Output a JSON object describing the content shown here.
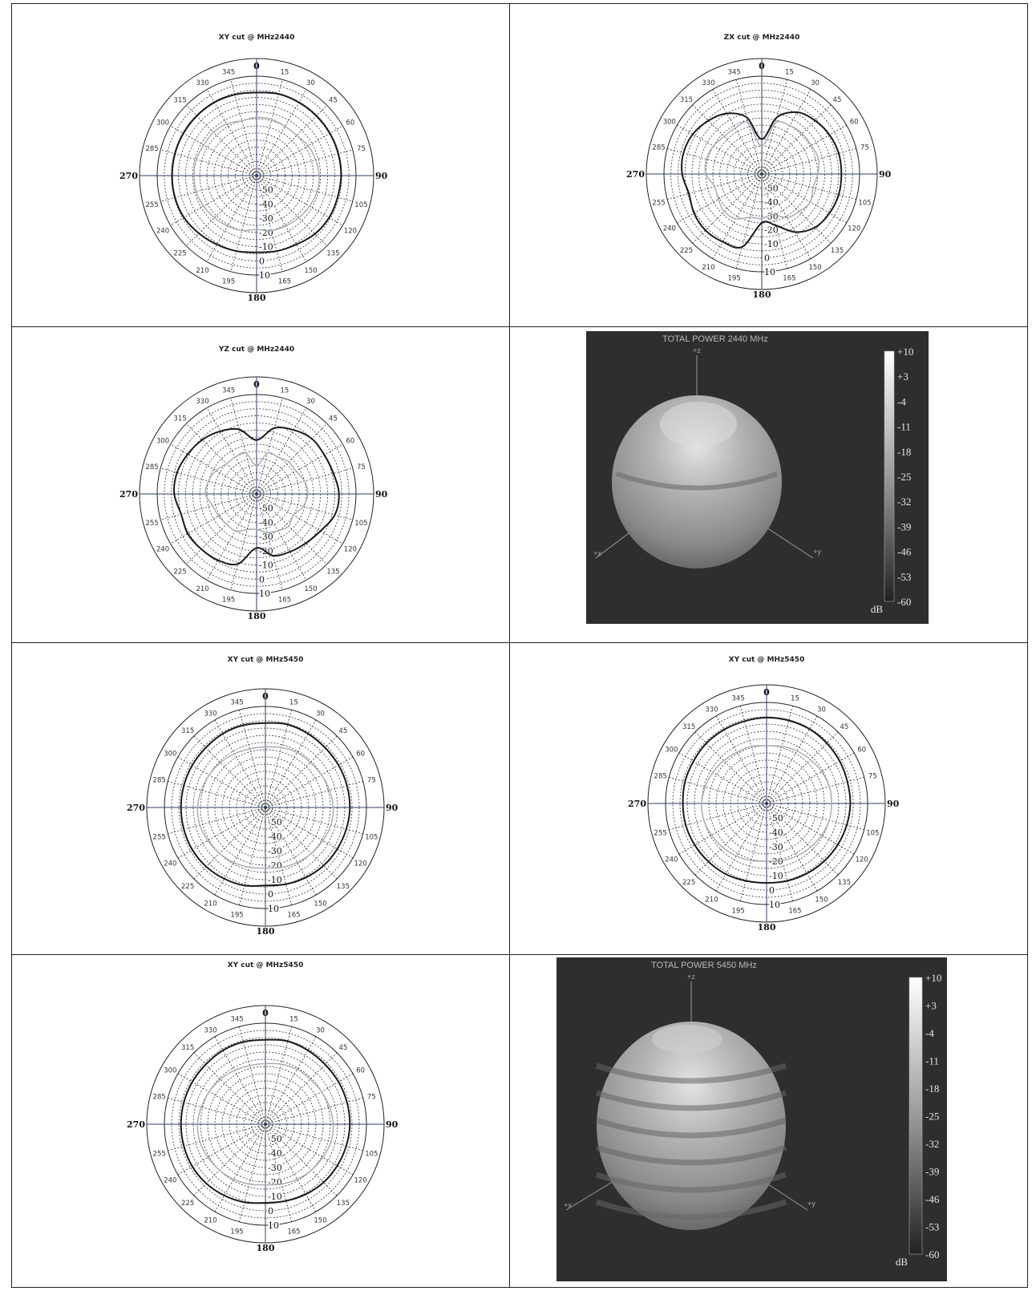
{
  "chart_data": [
    {
      "type": "polar",
      "title": "XY cut @ MHz2440",
      "angle_labels": [
        "0",
        "15",
        "30",
        "45",
        "60",
        "75",
        "90",
        "105",
        "120",
        "135",
        "150",
        "165",
        "180",
        "195",
        "210",
        "225",
        "240",
        "255",
        "270",
        "285",
        "300",
        "315",
        "330",
        "345"
      ],
      "radial_labels": [
        "-50",
        "-40",
        "-30",
        "-20",
        "-10",
        "0",
        "10"
      ],
      "rlim": [
        -60,
        10
      ],
      "series": [
        {
          "values": [
            -1.5,
            -0.5,
            -0.5,
            -0.5,
            -0.5,
            -0.5,
            -0.5,
            -1,
            -1,
            -2,
            -4,
            -5,
            -6,
            -5,
            -4,
            -2.5,
            -1,
            -0.5,
            -0.5,
            -0.5,
            -0.5,
            -0.5,
            -0.5,
            -1
          ]
        },
        {
          "values": [
            -19,
            -19,
            -20,
            -20,
            -18,
            -17,
            -16,
            -16,
            -17,
            -18,
            -19,
            -20,
            -22,
            -20,
            -19,
            -18,
            -17,
            -16,
            -16,
            -16,
            -17,
            -17,
            -18,
            -20
          ]
        }
      ]
    },
    {
      "type": "polar",
      "title": "ZX cut @ MHz2440",
      "angle_labels": [
        "0",
        "15",
        "30",
        "45",
        "60",
        "75",
        "90",
        "105",
        "120",
        "135",
        "150",
        "165",
        "180",
        "195",
        "210",
        "225",
        "240",
        "255",
        "270",
        "285",
        "300",
        "315",
        "330",
        "345"
      ],
      "radial_labels": [
        "-50",
        "-40",
        "-30",
        "-20",
        "-10",
        "0",
        "10"
      ],
      "rlim": [
        -60,
        10
      ],
      "series": [
        {
          "values": [
            -35,
            -18,
            -9,
            -6,
            -4,
            -3,
            -3,
            -3,
            -4,
            -6,
            -12,
            -22,
            -25,
            -6,
            -4,
            -3,
            -4,
            -6,
            -3,
            -2,
            -3,
            -6,
            -10,
            -18
          ]
        },
        {
          "values": [
            -40,
            -22,
            -20,
            -19,
            -19,
            -18,
            -20,
            -22,
            -20,
            -22,
            -24,
            -30,
            -28,
            -28,
            -23,
            -22,
            -24,
            -25,
            -20,
            -19,
            -20,
            -22,
            -22,
            -22
          ]
        }
      ]
    },
    {
      "type": "polar",
      "title": "YZ cut @ MHz2440",
      "angle_labels": [
        "0",
        "15",
        "30",
        "45",
        "60",
        "75",
        "90",
        "105",
        "120",
        "135",
        "150",
        "165",
        "180",
        "195",
        "210",
        "225",
        "240",
        "255",
        "270",
        "285",
        "300",
        "315",
        "330",
        "345"
      ],
      "radial_labels": [
        "-50",
        "-40",
        "-30",
        "-20",
        "-10",
        "0",
        "10"
      ],
      "rlim": [
        -60,
        10
      ],
      "series": [
        {
          "values": [
            -22,
            -12,
            -8,
            -5,
            -5,
            -4,
            -2,
            -3,
            -8,
            -11,
            -13,
            -15,
            -22,
            -9,
            -6,
            -5,
            -4,
            -5,
            -2,
            -2,
            -4,
            -6,
            -9,
            -13
          ]
        },
        {
          "values": [
            -40,
            -30,
            -30,
            -28,
            -28,
            -25,
            -24,
            -26,
            -30,
            -28,
            -30,
            -32,
            -35,
            -34,
            -30,
            -30,
            -29,
            -28,
            -24,
            -25,
            -27,
            -30,
            -30,
            -30
          ]
        }
      ]
    },
    {
      "type": "surface3d",
      "title": "TOTAL POWER 2440   MHz",
      "axes": [
        "+z",
        "+x",
        "+y"
      ],
      "colorbar_ticks": [
        "+10",
        "+3",
        "-4",
        "-11",
        "-18",
        "-25",
        "-32",
        "-39",
        "-46",
        "-53",
        "-60"
      ],
      "colorbar_unit": "dB"
    },
    {
      "type": "polar",
      "title": "XY cut @ MHz5450",
      "angle_labels": [
        "0",
        "15",
        "30",
        "45",
        "60",
        "75",
        "90",
        "105",
        "120",
        "135",
        "150",
        "165",
        "180",
        "195",
        "210",
        "225",
        "240",
        "255",
        "270",
        "285",
        "300",
        "315",
        "330",
        "345"
      ],
      "radial_labels": [
        "-50",
        "-40",
        "-30",
        "-20",
        "-10",
        "0",
        "10"
      ],
      "rlim": [
        -60,
        10
      ],
      "series": [
        {
          "values": [
            -1.5,
            -0.5,
            -1,
            -1.5,
            -1.5,
            -1.5,
            -1.5,
            -2,
            -2.5,
            -3,
            -4,
            -5,
            -6,
            -4,
            -3,
            -2,
            -1.5,
            -1.5,
            -1.5,
            -1.5,
            -1.5,
            -1.5,
            -1,
            -1
          ]
        },
        {
          "values": [
            -18,
            -17,
            -16,
            -16,
            -15,
            -14,
            -13,
            -13,
            -14,
            -15,
            -16,
            -17,
            -18,
            -17,
            -16,
            -15,
            -14,
            -13,
            -13,
            -14,
            -15,
            -16,
            -17,
            -18
          ]
        }
      ]
    },
    {
      "type": "polar",
      "title": "XY cut @ MHz5450",
      "angle_labels": [
        "0",
        "15",
        "30",
        "45",
        "60",
        "75",
        "90",
        "105",
        "120",
        "135",
        "150",
        "165",
        "180",
        "195",
        "210",
        "225",
        "240",
        "255",
        "270",
        "285",
        "300",
        "315",
        "330",
        "345"
      ],
      "radial_labels": [
        "-50",
        "-40",
        "-30",
        "-20",
        "-10",
        "0",
        "10"
      ],
      "rlim": [
        -60,
        10
      ],
      "series": [
        {
          "values": [
            -0.5,
            -0.5,
            -0.5,
            -1,
            -1.5,
            -2,
            -2,
            -2.5,
            -3,
            -3.5,
            -4,
            -4.5,
            -5,
            -4.5,
            -3.5,
            -3,
            -2.5,
            -2,
            -2,
            -1.5,
            -1.5,
            -1,
            -1,
            -1
          ]
        },
        {
          "values": [
            -20,
            -19,
            -18,
            -17,
            -16,
            -15,
            -15,
            -15,
            -16,
            -17,
            -18,
            -19,
            -20,
            -19,
            -18,
            -17,
            -16,
            -15,
            -15,
            -16,
            -17,
            -18,
            -19,
            -19
          ]
        }
      ]
    },
    {
      "type": "polar",
      "title": "XY cut @ MHz5450",
      "angle_labels": [
        "0",
        "15",
        "30",
        "45",
        "60",
        "75",
        "90",
        "105",
        "120",
        "135",
        "150",
        "165",
        "180",
        "195",
        "210",
        "225",
        "240",
        "255",
        "270",
        "285",
        "300",
        "315",
        "330",
        "345"
      ],
      "radial_labels": [
        "-50",
        "-40",
        "-30",
        "-20",
        "-10",
        "0",
        "10"
      ],
      "rlim": [
        -60,
        10
      ],
      "series": [
        {
          "values": [
            -1.5,
            -0.5,
            -1,
            -1.5,
            -1.5,
            -1.5,
            -1.5,
            -2,
            -2.5,
            -3,
            -4,
            -5,
            -5.5,
            -4,
            -3,
            -2,
            -1.5,
            -1.5,
            -1.5,
            -1.5,
            -1.5,
            -1.5,
            -1,
            -1
          ]
        },
        {
          "values": [
            -18,
            -17,
            -16,
            -16,
            -15,
            -14,
            -13,
            -13,
            -14,
            -15,
            -16,
            -17,
            -18,
            -17,
            -16,
            -15,
            -14,
            -13,
            -13,
            -14,
            -15,
            -16,
            -17,
            -18
          ]
        }
      ]
    },
    {
      "type": "surface3d",
      "title": "TOTAL POWER 5450   MHz",
      "axes": [
        "+z",
        "+x",
        "+y"
      ],
      "colorbar_ticks": [
        "+10",
        "+3",
        "-4",
        "-11",
        "-18",
        "-25",
        "-32",
        "-39",
        "-46",
        "-53",
        "-60"
      ],
      "colorbar_unit": "dB"
    }
  ]
}
